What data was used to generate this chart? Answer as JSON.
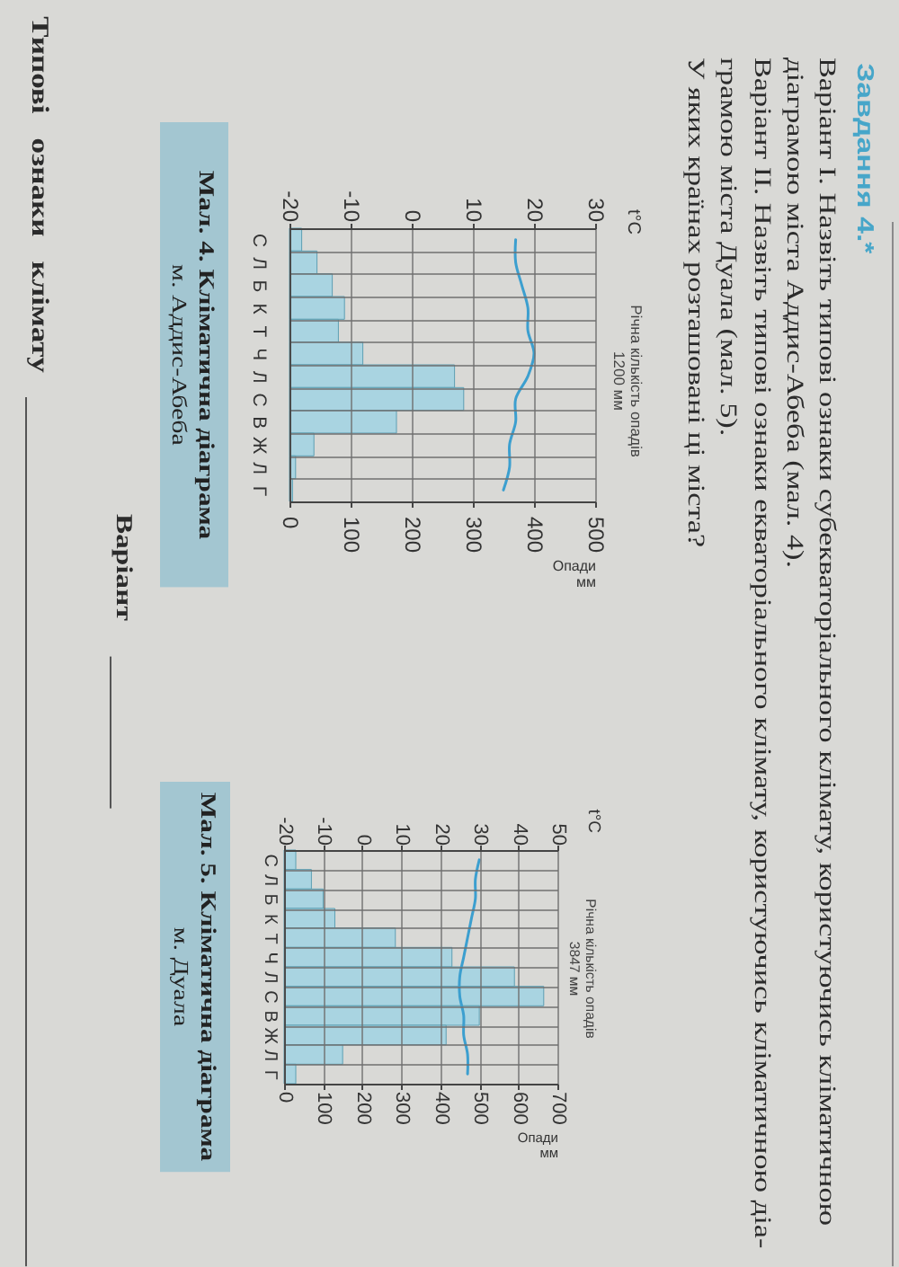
{
  "chart_data": [
    {
      "type": "other",
      "title": "Завдання 4.*",
      "annotations": [
        "Варіант І. Назвіть типові ознаки субекваторіального клімату, користуючись кліматичною",
        "діаграмою міста Аддис-Абеба (мал. 4).",
        "Варіант ІІ. Назвіть типові ознаки екваторіального клімату, користуючись кліматичною діа-",
        "грамою міста Дуала (мал. 5).",
        "У яких країнах розташовані ці міста?"
      ]
    },
    {
      "type": "bar",
      "orientation": "horizontal",
      "title": "Мал. 4. Кліматична діаграма",
      "subtitle": "м. Аддис-Абеба",
      "xlabel": "Опади мм",
      "x2label": "t°C",
      "annotations": [
        "Річна кількість опадів 1200 мм"
      ],
      "categories": [
        "С",
        "Л",
        "Б",
        "К",
        "Т",
        "Ч",
        "Л",
        "С",
        "В",
        "Ж",
        "Л",
        "Г"
      ],
      "series": [
        {
          "type": "bar",
          "color": "#a9d4e1",
          "values": [
            20,
            45,
            70,
            90,
            80,
            120,
            270,
            285,
            175,
            40,
            10,
            5
          ]
        },
        {
          "type": "line",
          "axis": "x2",
          "color": "#3c9fcf",
          "values": [
            17,
            17,
            18,
            19,
            19,
            20,
            19,
            17,
            17,
            16,
            16,
            15
          ]
        }
      ],
      "xlim": [
        0,
        500
      ],
      "xticks": [
        0,
        100,
        200,
        300,
        400,
        500
      ],
      "x2lim": [
        -20,
        30
      ],
      "x2ticks": [
        -20,
        -10,
        0,
        10,
        20,
        30
      ],
      "grid": true
    },
    {
      "type": "bar",
      "orientation": "horizontal",
      "title": "Мал. 5. Кліматична діаграма",
      "subtitle": "м. Дуала",
      "xlabel": "Опади мм",
      "x2label": "t°C",
      "annotations": [
        "Річна кількість опадів 3847 мм"
      ],
      "categories": [
        "С",
        "Л",
        "Б",
        "К",
        "Т",
        "Ч",
        "Л",
        "С",
        "В",
        "Ж",
        "Л",
        "Г"
      ],
      "series": [
        {
          "type": "bar",
          "color": "#a9d4e1",
          "values": [
            30,
            70,
            100,
            130,
            285,
            430,
            590,
            665,
            500,
            415,
            150,
            30
          ]
        },
        {
          "type": "line",
          "axis": "x2",
          "color": "#3c9fcf",
          "values": [
            30,
            29,
            29,
            28,
            27,
            26,
            25,
            25,
            26,
            26,
            27,
            27
          ]
        }
      ],
      "xlim": [
        0,
        700
      ],
      "xticks": [
        0,
        100,
        200,
        300,
        400,
        500,
        600,
        700
      ],
      "x2lim": [
        -20,
        50
      ],
      "x2ticks": [
        -20,
        -10,
        0,
        10,
        20,
        30,
        40,
        50
      ],
      "grid": true
    },
    {
      "type": "other",
      "annotations": [
        "Варіант",
        "Типові ознаки клімату"
      ]
    }
  ]
}
